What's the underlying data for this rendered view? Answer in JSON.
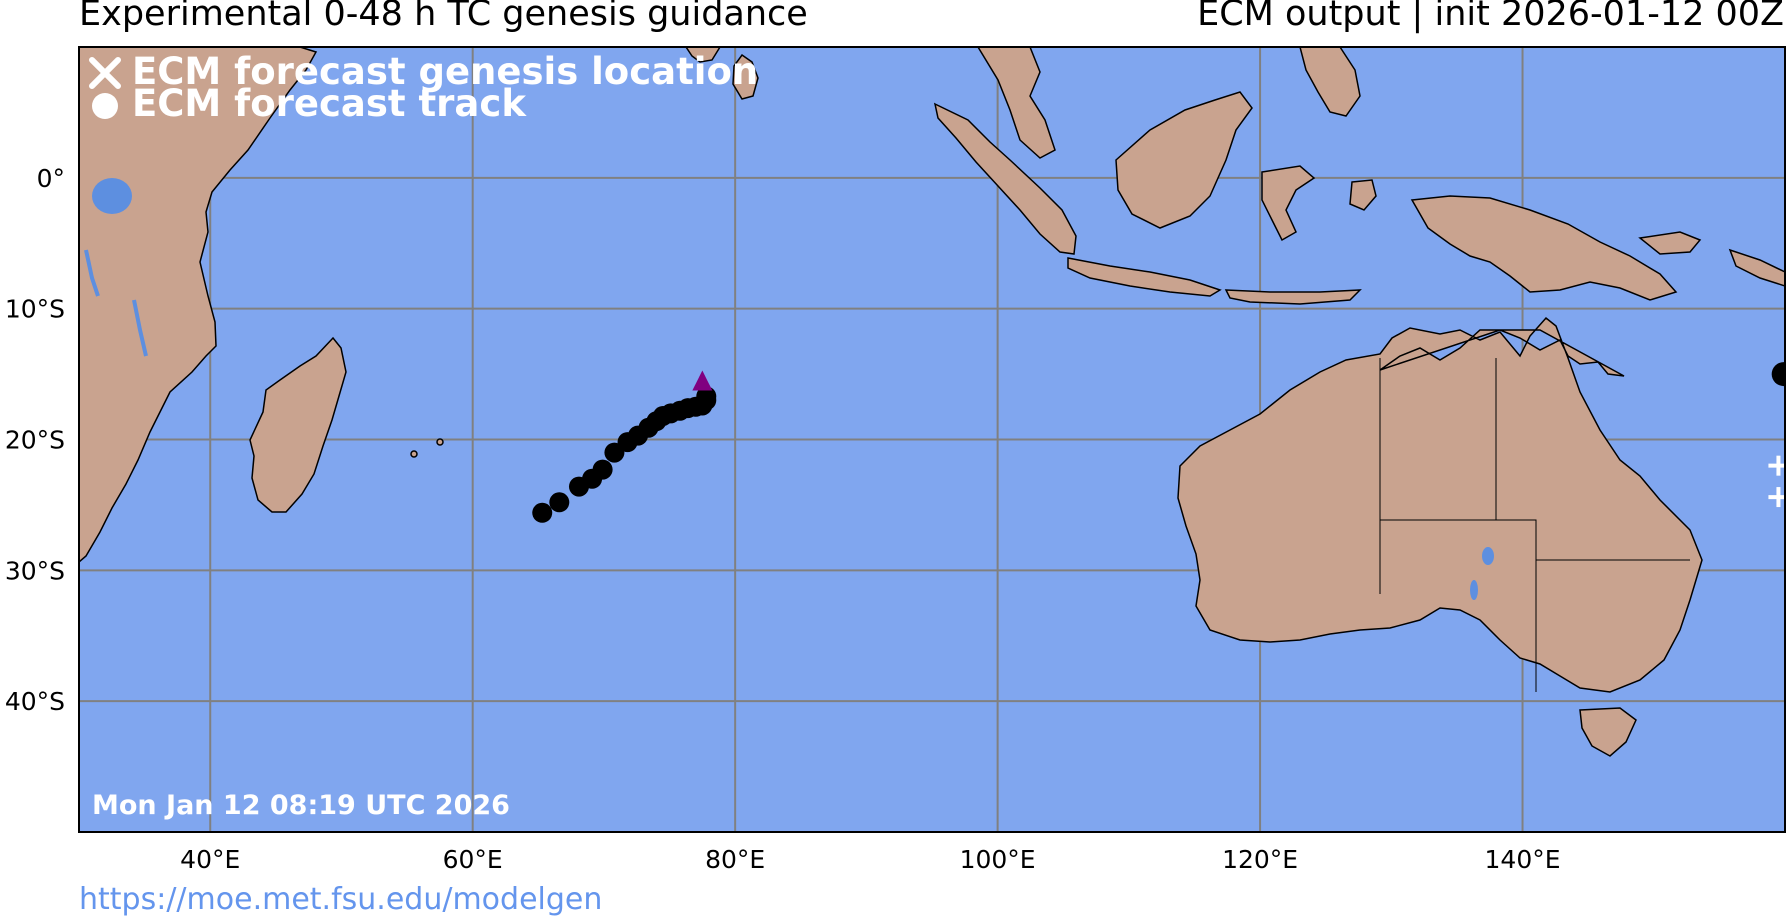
{
  "header": {
    "title_left": "Experimental 0-48 h TC genesis guidance",
    "title_right": "ECM output | init 2026-01-12 00Z"
  },
  "legend": {
    "genesis_label": "ECM forecast genesis location",
    "track_label": "ECM forecast track"
  },
  "timestamp": "Mon Jan 12 08:19 UTC 2026",
  "footer_url": "https://moe.met.fsu.edu/modelgen",
  "map": {
    "lon_range": [
      30,
      160
    ],
    "lat_range": [
      -50,
      10
    ],
    "lon_ticks": [
      {
        "value": 40,
        "label": "40°E"
      },
      {
        "value": 60,
        "label": "60°E"
      },
      {
        "value": 80,
        "label": "80°E"
      },
      {
        "value": 100,
        "label": "100°E"
      },
      {
        "value": 120,
        "label": "120°E"
      },
      {
        "value": 140,
        "label": "140°E"
      }
    ],
    "lat_ticks": [
      {
        "value": 0,
        "label": "0°"
      },
      {
        "value": -10,
        "label": "10°S"
      },
      {
        "value": -20,
        "label": "20°S"
      },
      {
        "value": -30,
        "label": "30°S"
      },
      {
        "value": -40,
        "label": "40°S"
      }
    ],
    "colors": {
      "ocean": "#80a6ef",
      "land": "#c9a38f",
      "grid": "#808080",
      "track": "#000000",
      "genesis_marker": "#800080",
      "lakes": "#5d8fe0"
    },
    "track_points": [
      [
        65.3,
        -25.6
      ],
      [
        66.6,
        -24.8
      ],
      [
        68.1,
        -23.6
      ],
      [
        69.1,
        -23.0
      ],
      [
        69.9,
        -22.3
      ],
      [
        70.8,
        -21.0
      ],
      [
        71.8,
        -20.2
      ],
      [
        72.6,
        -19.7
      ],
      [
        73.4,
        -19.1
      ],
      [
        74.0,
        -18.6
      ],
      [
        74.5,
        -18.2
      ],
      [
        75.1,
        -18.0
      ],
      [
        75.8,
        -17.8
      ],
      [
        76.4,
        -17.6
      ],
      [
        77.0,
        -17.5
      ],
      [
        77.5,
        -17.4
      ],
      [
        77.8,
        -17.0
      ],
      [
        77.8,
        -16.7
      ]
    ],
    "genesis_marker_position": [
      77.5,
      -15.8
    ],
    "offmap_track_point": [
      159.9,
      -15.0
    ],
    "offmap_plus_markers": [
      [
        159.5,
        -22.0
      ],
      [
        159.5,
        -24.4
      ]
    ]
  }
}
